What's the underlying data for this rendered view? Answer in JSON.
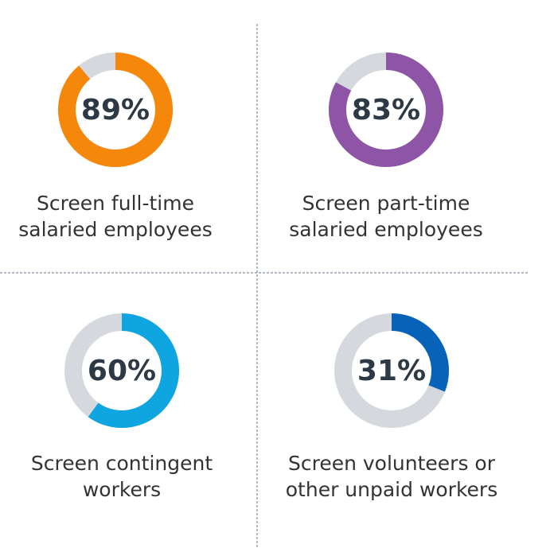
{
  "chart_data": [
    {
      "type": "donut",
      "values": [
        89
      ],
      "value_labels": [
        "89%"
      ],
      "color": "#f5870a",
      "track_color": "#d5d9de",
      "label": [
        "Screen full-time",
        "salaried employees"
      ]
    },
    {
      "type": "donut",
      "values": [
        83
      ],
      "value_labels": [
        "83%"
      ],
      "color": "#8e54a6",
      "track_color": "#d5d9de",
      "label": [
        "Screen part-time",
        "salaried employees"
      ]
    },
    {
      "type": "donut",
      "values": [
        60
      ],
      "value_labels": [
        "60%"
      ],
      "color": "#0ea5e0",
      "track_color": "#d5d9de",
      "label": [
        "Screen contingent",
        "workers"
      ]
    },
    {
      "type": "donut",
      "values": [
        31
      ],
      "value_labels": [
        "31%"
      ],
      "color": "#0763b8",
      "track_color": "#d5d9de",
      "label": [
        "Screen volunteers or",
        "other unpaid workers"
      ]
    }
  ]
}
